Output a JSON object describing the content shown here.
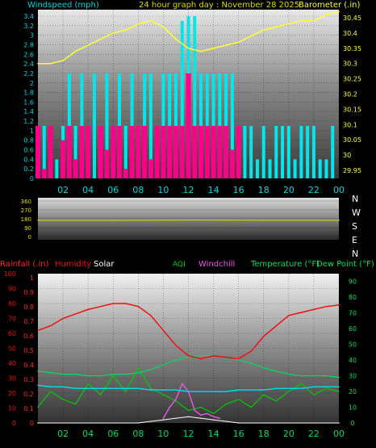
{
  "header": {
    "title": "24 hour graph day : November 28 2025",
    "left_label": "Windspeed (mph)",
    "right_label": "Barometer (.in)"
  },
  "colors": {
    "wind_avg": "#ff0088",
    "wind_gust": "#00e8ee",
    "barometer": "#ffff33",
    "title": "#dddd00",
    "axis_left_top": "#00d8e0",
    "humidity": "#ee1111",
    "temperature": "#00dd66",
    "dewpoint": "#00e0ee",
    "aqi": "#00cc00",
    "windchill": "#ee55ee",
    "rain_axis": "#ff2222",
    "direction": "#dddd00"
  },
  "x_ticks": [
    "02",
    "04",
    "06",
    "08",
    "10",
    "12",
    "14",
    "16",
    "18",
    "20",
    "22",
    "00"
  ],
  "top_chart": {
    "left_ticks": [
      "3.4",
      "3.2",
      "3",
      "2.8",
      "2.6",
      "2.4",
      "2.2",
      "2",
      "1.8",
      "1.6",
      "1.4",
      "1.2",
      "1",
      "0.8",
      "0.6",
      "0.4",
      "0.2",
      "0"
    ],
    "right_ticks": [
      "30.45",
      "30.4",
      "30.35",
      "30.3",
      "30.25",
      "30.2",
      "30.15",
      "30.1",
      "30.05",
      "30",
      "29.95"
    ]
  },
  "dir_chart": {
    "left_ticks": [
      "360",
      "270",
      "180",
      "90",
      "0"
    ],
    "compass": [
      "N",
      "W",
      "S",
      "E",
      "N"
    ]
  },
  "bottom_chart": {
    "rain_label": "Rainfall (.in)",
    "humidity_label": "Humidity",
    "solar_label": "Solar",
    "aqi_label": "AQI",
    "windchill_label": "Windchill",
    "temp_label": "Temperature (°F)",
    "dew_label": "Dew Point (°F)",
    "humidity_ticks": [
      "100",
      "90",
      "80",
      "70",
      "60",
      "50",
      "40",
      "30",
      "20",
      "10",
      "0"
    ],
    "rain_ticks": [
      "1",
      "0.9",
      "0.8",
      "0.7",
      "0.6",
      "0.5",
      "0.4",
      "0.3",
      "0.2",
      "0.1",
      "0"
    ],
    "temp_ticks": [
      "90",
      "80",
      "70",
      "60",
      "50",
      "40",
      "30",
      "20",
      "10",
      "0"
    ]
  },
  "chart_data": [
    {
      "type": "line",
      "title": "24 hour graph day : November 28 2025",
      "x_unit": "hours",
      "ylabel_left": "Windspeed (mph)",
      "ylabel_right": "Barometer (.in)",
      "ylim_left": [
        0,
        3.4
      ],
      "ylim_right": [
        29.95,
        30.45
      ],
      "series": [
        {
          "name": "Barometer",
          "axis": "right",
          "x": [
            0,
            1,
            2,
            3,
            4,
            5,
            6,
            7,
            8,
            9,
            10,
            11,
            12,
            13,
            14,
            15,
            16,
            17,
            18,
            19,
            20,
            21,
            22,
            23,
            24
          ],
          "values": [
            30.3,
            30.3,
            30.31,
            30.34,
            30.36,
            30.38,
            30.4,
            30.41,
            30.43,
            30.44,
            30.42,
            30.38,
            30.35,
            30.34,
            30.35,
            30.36,
            30.37,
            30.39,
            30.41,
            30.42,
            30.43,
            30.44,
            30.44,
            30.46,
            30.47
          ]
        },
        {
          "name": "Wind average",
          "axis": "left",
          "x": [
            0,
            0.5,
            1,
            1.5,
            2,
            2.5,
            3,
            3.5,
            4,
            4.5,
            5,
            5.5,
            6,
            6.5,
            7,
            7.5,
            8,
            8.5,
            9,
            9.5,
            10,
            10.5,
            11,
            11.5,
            12,
            12.5,
            13,
            13.5,
            14,
            14.5,
            15,
            15.5,
            16,
            16.5,
            17,
            17.5,
            18,
            18.5,
            19,
            19.5,
            20,
            20.5,
            21,
            21.5,
            22,
            22.5,
            23,
            23.5,
            24
          ],
          "values": [
            1.1,
            0.2,
            1.1,
            0,
            0.8,
            1.1,
            0.4,
            1.1,
            1.1,
            0,
            1.1,
            0.6,
            1.1,
            1.1,
            0.2,
            1.1,
            1.1,
            1.1,
            0.4,
            1.1,
            1.1,
            1.1,
            1.1,
            1.1,
            2.2,
            1.1,
            1.1,
            1.1,
            1.1,
            1.1,
            1.1,
            0.6,
            1.1,
            0,
            0,
            0,
            0,
            0,
            0,
            0,
            0,
            0,
            0,
            0,
            0,
            0,
            0,
            0,
            0
          ]
        },
        {
          "name": "Wind gust",
          "axis": "left",
          "x": [
            0,
            0.5,
            1,
            1.5,
            2,
            2.5,
            3,
            3.5,
            4,
            4.5,
            5,
            5.5,
            6,
            6.5,
            7,
            7.5,
            8,
            8.5,
            9,
            9.5,
            10,
            10.5,
            11,
            11.5,
            12,
            12.5,
            13,
            13.5,
            14,
            14.5,
            15,
            15.5,
            16,
            16.5,
            17,
            17.5,
            18,
            18.5,
            19,
            19.5,
            20,
            20.5,
            21,
            21.5,
            22,
            22.5,
            23,
            23.5,
            24
          ],
          "values": [
            1.1,
            1.1,
            1.1,
            0.4,
            1.1,
            2.2,
            1.1,
            2.2,
            1.1,
            2.2,
            1.1,
            2.2,
            1.1,
            2.2,
            1.1,
            2.2,
            1.1,
            2.2,
            2.2,
            1.1,
            2.2,
            2.2,
            2.2,
            3.3,
            3.4,
            3.4,
            2.2,
            2.2,
            2.2,
            2.2,
            2.2,
            2.2,
            1.1,
            1.1,
            1.1,
            0.4,
            1.1,
            0.4,
            1.1,
            1.1,
            1.1,
            0.4,
            1.1,
            1.1,
            1.1,
            0.4,
            0.4,
            1.1,
            0
          ]
        }
      ]
    },
    {
      "type": "line",
      "title": "Wind direction",
      "ylim": [
        0,
        360
      ],
      "series": [
        {
          "name": "Direction",
          "x": [
            0,
            6,
            12,
            18,
            24
          ],
          "values": [
            165,
            165,
            168,
            166,
            165
          ]
        }
      ]
    },
    {
      "type": "line",
      "title": "Rainfall / Humidity / Solar / AQI / Windchill / Temperature / Dew Point",
      "ylim_humidity": [
        0,
        100
      ],
      "ylim_rain": [
        0,
        1
      ],
      "ylim_temp": [
        0,
        95
      ],
      "series": [
        {
          "name": "Humidity",
          "axis": "humidity",
          "x": [
            0,
            1,
            2,
            3,
            4,
            5,
            6,
            7,
            8,
            9,
            10,
            11,
            12,
            13,
            14,
            15,
            16,
            17,
            18,
            19,
            20,
            21,
            22,
            23,
            24
          ],
          "values": [
            62,
            65,
            70,
            73,
            76,
            78,
            80,
            80,
            78,
            72,
            62,
            52,
            45,
            43,
            45,
            44,
            43,
            48,
            58,
            65,
            72,
            74,
            76,
            78,
            79
          ]
        },
        {
          "name": "Temperature",
          "axis": "temp",
          "x": [
            0,
            1,
            2,
            3,
            4,
            5,
            6,
            7,
            8,
            9,
            10,
            11,
            12,
            13,
            14,
            15,
            16,
            17,
            18,
            19,
            20,
            21,
            22,
            23,
            24
          ],
          "values": [
            33,
            32,
            31,
            31,
            30,
            30,
            31,
            31,
            32,
            34,
            37,
            40,
            42,
            43,
            43,
            42,
            40,
            38,
            35,
            33,
            31,
            30,
            30,
            30,
            29
          ]
        },
        {
          "name": "Dew Point",
          "axis": "temp",
          "x": [
            0,
            1,
            2,
            3,
            4,
            5,
            6,
            7,
            8,
            9,
            10,
            11,
            12,
            13,
            14,
            15,
            16,
            17,
            18,
            19,
            20,
            21,
            22,
            23,
            24
          ],
          "values": [
            24,
            23,
            23,
            22,
            22,
            22,
            22,
            22,
            22,
            21,
            21,
            21,
            20,
            20,
            20,
            20,
            21,
            21,
            21,
            22,
            22,
            22,
            23,
            23,
            23
          ]
        },
        {
          "name": "AQI",
          "axis": "temp",
          "x": [
            0,
            1,
            2,
            3,
            4,
            5,
            6,
            7,
            8,
            9,
            10,
            11,
            12,
            13,
            14,
            15,
            16,
            17,
            18,
            19,
            20,
            21,
            22,
            23,
            24
          ],
          "values": [
            10,
            20,
            15,
            12,
            25,
            18,
            30,
            20,
            35,
            22,
            18,
            14,
            8,
            10,
            6,
            12,
            15,
            10,
            18,
            14,
            20,
            25,
            18,
            22,
            20
          ]
        },
        {
          "name": "Windchill",
          "axis": "temp",
          "x": [
            10,
            10.5,
            11,
            11.5,
            12,
            12.5,
            13,
            13.5,
            14,
            14.5
          ],
          "values": [
            3,
            10,
            15,
            25,
            20,
            8,
            5,
            6,
            4,
            3
          ]
        },
        {
          "name": "Solar",
          "axis": "temp",
          "x": [
            0,
            8,
            9,
            10,
            11,
            12,
            13,
            14,
            15,
            16,
            24
          ],
          "values": [
            0,
            0,
            1,
            2,
            3,
            4,
            3,
            2,
            1,
            0,
            0
          ]
        }
      ]
    }
  ]
}
